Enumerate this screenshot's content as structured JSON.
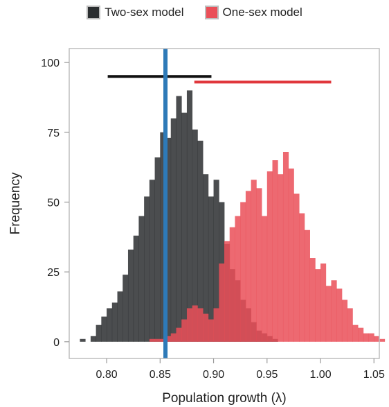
{
  "chart_data": {
    "type": "histogram",
    "xlabel": "Population growth (λ)",
    "ylabel": "Frequency",
    "xlim": [
      0.765,
      1.055
    ],
    "ylim": [
      -6,
      105
    ],
    "x_ticks": [
      "0.80",
      "0.85",
      "0.90",
      "0.95",
      "1.00",
      "1.05"
    ],
    "y_ticks": [
      "0",
      "25",
      "50",
      "75",
      "100"
    ],
    "bin_width": 0.005,
    "legend_position": "top",
    "series": [
      {
        "name": "Two-sex model",
        "color": "#2b2e30",
        "opacity": 0.85,
        "bin_start": 0.775,
        "counts": [
          1,
          0,
          2,
          6,
          9,
          12,
          14,
          18,
          24,
          33,
          38,
          45,
          52,
          58,
          66,
          75,
          73,
          80,
          88,
          82,
          90,
          76,
          72,
          60,
          52,
          58,
          50,
          35,
          26,
          22,
          15,
          12,
          7,
          4,
          3,
          2,
          1
        ]
      },
      {
        "name": "One-sex model",
        "color": "#ea4f58",
        "opacity": 0.85,
        "bin_start": 0.84,
        "counts": [
          1,
          1,
          1,
          2,
          3,
          5,
          8,
          12,
          13,
          12,
          10,
          8,
          12,
          28,
          36,
          41,
          45,
          50,
          54,
          58,
          55,
          45,
          61,
          65,
          60,
          68,
          62,
          53,
          46,
          40,
          30,
          26,
          28,
          20,
          22,
          19,
          15,
          12,
          6,
          5,
          3,
          3,
          2,
          1
        ]
      }
    ],
    "vertical_line": {
      "x": 0.855,
      "color": "#2e7ab8"
    },
    "intervals": [
      {
        "series": "Two-sex model",
        "x0": 0.801,
        "x1": 0.898,
        "y": 95,
        "color": "#111111"
      },
      {
        "series": "One-sex model",
        "x0": 0.882,
        "x1": 1.01,
        "y": 93,
        "color": "#e0373c"
      }
    ]
  }
}
